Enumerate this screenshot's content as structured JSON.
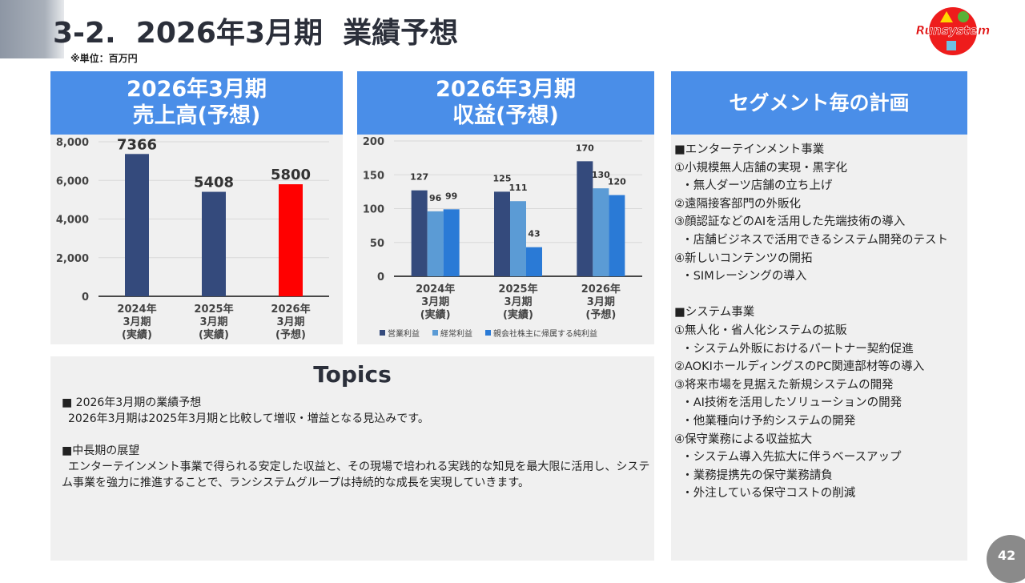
{
  "header": {
    "title": "3-2.  2026年3月期  業績予想",
    "unit_note": "※単位：百万円",
    "logo_text": "Runsystem"
  },
  "sales_panel": {
    "title_line1": "2026年3月期",
    "title_line2": "売上高(予想)"
  },
  "profit_panel": {
    "title_line1": "2026年3月期",
    "title_line2": "収益(予想)"
  },
  "segment_panel": {
    "title": "セグメント毎の計画",
    "lines": [
      "■エンターテインメント事業",
      "①小規模無人店舗の実現・黒字化",
      "  ・無人ダーツ店舗の立ち上げ",
      "②遠隔接客部門の外販化",
      "③顔認証などのAIを活用した先端技術の導入",
      "  ・店舗ビジネスで活用できるシステム開発のテスト",
      "④新しいコンテンツの開拓",
      "  ・SIMレーシングの導入",
      "",
      "■システム事業",
      "①無人化・省人化システムの拡販",
      "  ・システム外販におけるパートナー契約促進",
      "②AOKIホールディングスのPC関連部材等の導入",
      "③将来市場を見据えた新規システムの開発",
      "  ・AI技術を活用したソリューションの開発",
      "  ・他業種向け予約システムの開発",
      "④保守業務による収益拡大",
      "  ・システム導入先拡大に伴うベースアップ",
      "  ・業務提携先の保守業務請負",
      "  ・外注している保守コストの削減"
    ]
  },
  "topics": {
    "title": "Topics",
    "item1_heading": "■  2026年3月期の業績予想",
    "item1_text": "2026年3月期は2025年3月期と比較して増収・増益となる見込みです。",
    "item2_heading": "■中長期の展望",
    "item2_text": "エンターテインメント事業で得られる安定した収益と、その現場で培われる実践的な知見を最大限に活用し、システム事業を強力に推進することで、ランシステムグループは持続的な成長を実現していきます。"
  },
  "page_number": "42",
  "chart_data": [
    {
      "type": "bar",
      "title": "2026年3月期 売上高(予想)",
      "categories": [
        [
          "2024年",
          "3月期",
          "(実績)"
        ],
        [
          "2025年",
          "3月期",
          "(実績)"
        ],
        [
          "2026年",
          "3月期",
          "(予想)"
        ]
      ],
      "values": [
        7366,
        5408,
        5800
      ],
      "colors": [
        "#344a7c",
        "#344a7c",
        "#ff0000"
      ],
      "ylim": [
        0,
        8000
      ],
      "yticks": [
        "0",
        "2,000",
        "4,000",
        "6,000",
        "8,000"
      ],
      "grid": true
    },
    {
      "type": "bar",
      "title": "2026年3月期 収益(予想)",
      "categories": [
        [
          "2024年",
          "3月期",
          "(実績)"
        ],
        [
          "2025年",
          "3月期",
          "(実績)"
        ],
        [
          "2026年",
          "3月期",
          "(予想)"
        ]
      ],
      "series": [
        {
          "name": "営業利益",
          "values": [
            127,
            125,
            170
          ],
          "color": "#344a7c"
        },
        {
          "name": "経常利益",
          "values": [
            96,
            111,
            130
          ],
          "color": "#5b9bd5"
        },
        {
          "name": "親会社株主に帰属する純利益",
          "values": [
            99,
            43,
            120
          ],
          "color": "#2a7ad6"
        }
      ],
      "ylim": [
        0,
        200
      ],
      "yticks": [
        "0",
        "50",
        "100",
        "150",
        "200"
      ],
      "grid": true,
      "legend": "bottom"
    }
  ]
}
